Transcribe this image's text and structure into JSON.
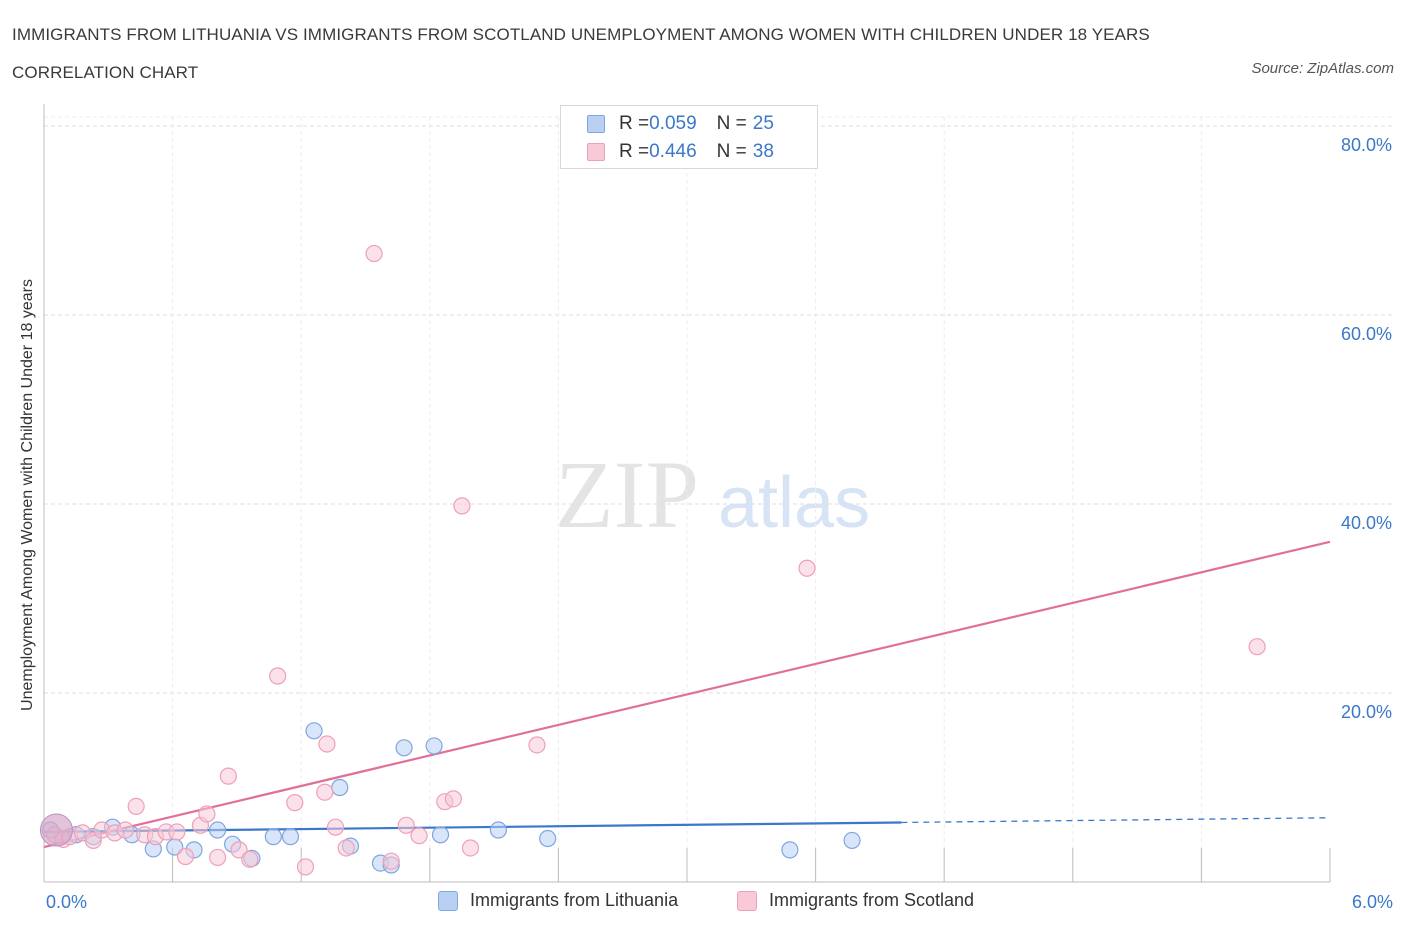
{
  "header": {
    "title": "IMMIGRANTS FROM LITHUANIA VS IMMIGRANTS FROM SCOTLAND UNEMPLOYMENT AMONG WOMEN WITH CHILDREN UNDER 18 YEARS CORRELATION CHART",
    "source": "Source: ZipAtlas.com"
  },
  "watermark": {
    "zip": "ZIP",
    "atlas": "atlas"
  },
  "legend_top": {
    "rows": [
      {
        "r_label": "R = ",
        "r_value": "0.059",
        "n_label": "N = ",
        "n_value": "25"
      },
      {
        "r_label": "R = ",
        "r_value": "0.446",
        "n_label": "N = ",
        "n_value": "38"
      }
    ]
  },
  "bottom_legend": {
    "lithuania": "Immigrants from Lithuania",
    "scotland": "Immigrants from Scotland"
  },
  "colors": {
    "lithuania_fill": "#b9d0f3",
    "lithuania_stroke": "#7fa6e0",
    "lithuania_line": "#3a78c9",
    "scotland_fill": "#f8c9d7",
    "scotland_stroke": "#eea0b8",
    "scotland_line": "#e0709a",
    "tick_label": "#3a78c9",
    "grid": "#dedede"
  },
  "chart_data": {
    "type": "scatter",
    "title": "IMMIGRANTS FROM LITHUANIA VS IMMIGRANTS FROM SCOTLAND UNEMPLOYMENT AMONG WOMEN WITH CHILDREN UNDER 18 YEARS CORRELATION CHART",
    "xlabel": "",
    "ylabel": "Unemployment Among Women with Children Under 18 years",
    "xlim": [
      0,
      6
    ],
    "ylim": [
      0,
      80
    ],
    "x_tick_labels": [
      "0.0%",
      "6.0%"
    ],
    "y_ticks": [
      20,
      40,
      60,
      80
    ],
    "y_tick_labels": [
      "20.0%",
      "40.0%",
      "60.0%",
      "80.0%"
    ],
    "grid": true,
    "series": [
      {
        "name": "Immigrants from Lithuania",
        "R": 0.059,
        "N": 25,
        "points": [
          [
            0.03,
            5.5
          ],
          [
            0.15,
            5.0
          ],
          [
            0.23,
            4.8
          ],
          [
            0.32,
            5.8
          ],
          [
            0.41,
            5.0
          ],
          [
            0.51,
            3.5
          ],
          [
            0.61,
            3.7
          ],
          [
            0.7,
            3.4
          ],
          [
            0.81,
            5.5
          ],
          [
            0.88,
            4.0
          ],
          [
            0.97,
            2.5
          ],
          [
            1.07,
            4.8
          ],
          [
            1.15,
            4.8
          ],
          [
            1.26,
            16.0
          ],
          [
            1.38,
            10.0
          ],
          [
            1.43,
            3.8
          ],
          [
            1.57,
            2.0
          ],
          [
            1.62,
            1.8
          ],
          [
            1.68,
            14.2
          ],
          [
            1.82,
            14.4
          ],
          [
            1.85,
            5.0
          ],
          [
            2.12,
            5.5
          ],
          [
            2.35,
            4.6
          ],
          [
            3.48,
            3.4
          ],
          [
            3.77,
            4.4
          ]
        ],
        "trend": {
          "x0": 0.0,
          "y0": 5.3,
          "x1": 4.0,
          "y1": 6.3,
          "dash_to_x": 6.0,
          "dash_to_y": 6.8
        }
      },
      {
        "name": "Immigrants from Scotland",
        "R": 0.446,
        "N": 38,
        "points": [
          [
            0.05,
            5.0
          ],
          [
            0.09,
            4.5
          ],
          [
            0.12,
            4.8
          ],
          [
            0.18,
            5.2
          ],
          [
            0.23,
            4.4
          ],
          [
            0.27,
            5.5
          ],
          [
            0.33,
            5.2
          ],
          [
            0.38,
            5.5
          ],
          [
            0.43,
            8.0
          ],
          [
            0.47,
            5.0
          ],
          [
            0.52,
            4.8
          ],
          [
            0.57,
            5.3
          ],
          [
            0.62,
            5.3
          ],
          [
            0.66,
            2.7
          ],
          [
            0.73,
            6.0
          ],
          [
            0.76,
            7.2
          ],
          [
            0.81,
            2.6
          ],
          [
            0.86,
            11.2
          ],
          [
            0.91,
            3.4
          ],
          [
            0.96,
            2.4
          ],
          [
            1.09,
            21.8
          ],
          [
            1.17,
            8.4
          ],
          [
            1.22,
            1.6
          ],
          [
            1.31,
            9.5
          ],
          [
            1.32,
            14.6
          ],
          [
            1.36,
            5.8
          ],
          [
            1.41,
            3.6
          ],
          [
            1.54,
            66.5
          ],
          [
            1.62,
            2.2
          ],
          [
            1.69,
            6.0
          ],
          [
            1.75,
            4.9
          ],
          [
            1.87,
            8.5
          ],
          [
            1.91,
            8.8
          ],
          [
            1.99,
            3.6
          ],
          [
            1.95,
            39.8
          ],
          [
            2.3,
            14.5
          ],
          [
            3.56,
            33.2
          ],
          [
            5.66,
            24.9
          ]
        ],
        "trend": {
          "x0": 0.0,
          "y0": 3.7,
          "x1": 6.0,
          "y1": 36.0
        }
      }
    ]
  }
}
